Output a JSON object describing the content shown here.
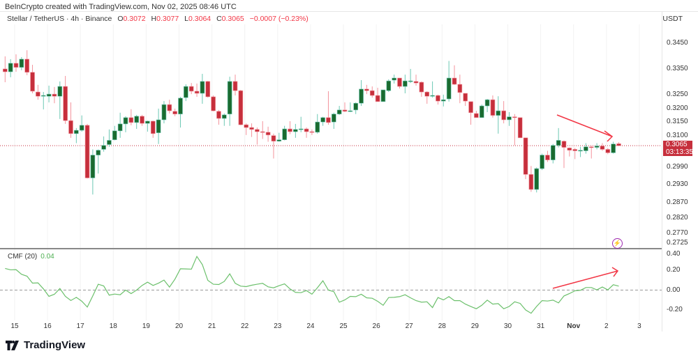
{
  "header": {
    "credit": "BeInCrypto created with TradingView.com, Nov 02, 2025 08:46 UTC",
    "symbol": "Stellar / TetherUS · 4h · Binance",
    "o_label": "O",
    "o": "0.3072",
    "h_label": "H",
    "h": "0.3077",
    "l_label": "L",
    "l": "0.3064",
    "c_label": "C",
    "c": "0.3065",
    "change": "−0.0007 (−0.23%)",
    "currency": "USDT"
  },
  "price_axis": {
    "scale": "log",
    "ticks": [
      "0.3450",
      "0.3350",
      "0.3250",
      "0.3200",
      "0.3150",
      "0.3100",
      "0.2990",
      "0.2930",
      "0.2870",
      "0.2820",
      "0.2770",
      "0.2725"
    ],
    "current_price": "0.3065",
    "countdown": "03:13:35"
  },
  "cmf": {
    "label": "CMF (20)",
    "value": "0.04",
    "ticks": [
      "0.40",
      "0.20",
      "0.00",
      "-0.20"
    ],
    "values": [
      0.218,
      0.204,
      0.206,
      0.159,
      0.14,
      0.07,
      0.073,
      0.012,
      -0.063,
      -0.042,
      0.016,
      -0.063,
      -0.105,
      -0.073,
      -0.112,
      -0.171,
      -0.059,
      0.059,
      0.042,
      -0.051,
      -0.04,
      -0.047,
      0,
      -0.035,
      0,
      0.047,
      0.08,
      0.047,
      0.07,
      0.101,
      0.03,
      0.11,
      0.215,
      0.213,
      0.211,
      0.339,
      0.257,
      0.098,
      0.059,
      0.056,
      0.087,
      0.164,
      0.068,
      0.04,
      0.035,
      0.049,
      0.059,
      0.068,
      0.033,
      0.023,
      0.044,
      0.063,
      0.012,
      -0.023,
      -0.026,
      -0.005,
      -0.041,
      0.024,
      0.094,
      0,
      -0.016,
      -0.122,
      -0.099,
      -0.063,
      -0.066,
      -0.042,
      -0.078,
      -0.082,
      -0.113,
      -0.153,
      -0.075,
      -0.073,
      -0.066,
      -0.047,
      -0.078,
      -0.106,
      -0.122,
      -0.118,
      -0.176,
      -0.075,
      -0.099,
      -0.066,
      -0.106,
      -0.106,
      -0.141,
      -0.165,
      -0.188,
      -0.153,
      -0.101,
      -0.141,
      -0.136,
      -0.188,
      -0.165,
      -0.118,
      -0.134,
      -0.2,
      -0.233,
      -0.165,
      -0.106,
      -0.11,
      -0.101,
      -0.129,
      -0.059,
      -0.035,
      -0.007,
      -0.002,
      0.026,
      0.026,
      0.002,
      0.031,
      0.002,
      0.054,
      0.04
    ]
  },
  "time_axis": {
    "labels": [
      "15",
      "16",
      "17",
      "18",
      "19",
      "20",
      "21",
      "22",
      "23",
      "24",
      "25",
      "26",
      "27",
      "28",
      "29",
      "30",
      "31",
      "Nov",
      "2",
      "3"
    ]
  },
  "colors": {
    "up": "#1a6b30",
    "up_wick": "#6cc8b4",
    "down": "#c62f3c",
    "down_wick": "#f4939c",
    "cmf_line": "#6cc06c",
    "annotation": "#f23645",
    "alert": "#9c27b0"
  },
  "footer": {
    "brand": "TradingView"
  },
  "chart_data": {
    "type": "candlestick",
    "interval": "4h",
    "series_name": "Stellar / TetherUS",
    "ohlc": [
      [
        0.3349,
        0.3398,
        0.3298,
        0.3338
      ],
      [
        0.3338,
        0.3387,
        0.3317,
        0.3371
      ],
      [
        0.3371,
        0.3406,
        0.3338,
        0.3355
      ],
      [
        0.3355,
        0.3395,
        0.3344,
        0.3387
      ],
      [
        0.3387,
        0.3422,
        0.3325,
        0.3336
      ],
      [
        0.3336,
        0.3365,
        0.3256,
        0.3264
      ],
      [
        0.3261,
        0.3288,
        0.3232,
        0.3245
      ],
      [
        0.3246,
        0.3261,
        0.3196,
        0.3248
      ],
      [
        0.3245,
        0.3285,
        0.3222,
        0.3253
      ],
      [
        0.3253,
        0.328,
        0.3219,
        0.3245
      ],
      [
        0.3245,
        0.3301,
        0.3161,
        0.3282
      ],
      [
        0.3282,
        0.3322,
        0.3143,
        0.3155
      ],
      [
        0.3155,
        0.3222,
        0.3093,
        0.3108
      ],
      [
        0.3108,
        0.3128,
        0.3074,
        0.312
      ],
      [
        0.312,
        0.3174,
        0.3115,
        0.3138
      ],
      [
        0.3138,
        0.3143,
        0.2951,
        0.2953
      ],
      [
        0.2953,
        0.3052,
        0.2897,
        0.3032
      ],
      [
        0.3032,
        0.3052,
        0.2968,
        0.3049
      ],
      [
        0.3052,
        0.3098,
        0.3044,
        0.3066
      ],
      [
        0.3069,
        0.3123,
        0.3061,
        0.3084
      ],
      [
        0.3086,
        0.3136,
        0.3084,
        0.3118
      ],
      [
        0.3118,
        0.3184,
        0.3093,
        0.3143
      ],
      [
        0.3143,
        0.3171,
        0.3113,
        0.3166
      ],
      [
        0.3166,
        0.3197,
        0.3138,
        0.3148
      ],
      [
        0.3148,
        0.3176,
        0.3125,
        0.3171
      ],
      [
        0.3171,
        0.3176,
        0.3136,
        0.3145
      ],
      [
        0.3145,
        0.3155,
        0.3115,
        0.3153
      ],
      [
        0.3153,
        0.3155,
        0.3093,
        0.3108
      ],
      [
        0.3111,
        0.3199,
        0.3071,
        0.3158
      ],
      [
        0.3158,
        0.3227,
        0.3145,
        0.3214
      ],
      [
        0.3214,
        0.3232,
        0.3181,
        0.3191
      ],
      [
        0.3189,
        0.3199,
        0.3171,
        0.3179
      ],
      [
        0.3179,
        0.3243,
        0.313,
        0.3238
      ],
      [
        0.324,
        0.329,
        0.3227,
        0.3282
      ],
      [
        0.3282,
        0.3295,
        0.3253,
        0.3264
      ],
      [
        0.3264,
        0.3293,
        0.3243,
        0.3256
      ],
      [
        0.3256,
        0.333,
        0.3217,
        0.3301
      ],
      [
        0.3301,
        0.3303,
        0.324,
        0.3243
      ],
      [
        0.3243,
        0.3248,
        0.3189,
        0.3191
      ],
      [
        0.3189,
        0.3194,
        0.314,
        0.3163
      ],
      [
        0.3163,
        0.3181,
        0.3136,
        0.3176
      ],
      [
        0.3179,
        0.3319,
        0.3136,
        0.3301
      ],
      [
        0.3301,
        0.3327,
        0.3248,
        0.3266
      ],
      [
        0.3266,
        0.3269,
        0.3138,
        0.314
      ],
      [
        0.314,
        0.3145,
        0.3103,
        0.313
      ],
      [
        0.313,
        0.3145,
        0.3096,
        0.3123
      ],
      [
        0.3123,
        0.313,
        0.3069,
        0.3115
      ],
      [
        0.3115,
        0.3153,
        0.3089,
        0.3113
      ],
      [
        0.3113,
        0.3133,
        0.3079,
        0.3103
      ],
      [
        0.3101,
        0.3108,
        0.302,
        0.3081
      ],
      [
        0.3081,
        0.3111,
        0.3079,
        0.3086
      ],
      [
        0.3086,
        0.3136,
        0.3084,
        0.3125
      ],
      [
        0.3125,
        0.3153,
        0.3106,
        0.3115
      ],
      [
        0.3115,
        0.3143,
        0.3093,
        0.3123
      ],
      [
        0.3123,
        0.3169,
        0.3113,
        0.3125
      ],
      [
        0.3125,
        0.313,
        0.3093,
        0.3115
      ],
      [
        0.3115,
        0.3123,
        0.3103,
        0.3113
      ],
      [
        0.3113,
        0.3179,
        0.3108,
        0.315
      ],
      [
        0.315,
        0.3169,
        0.3136,
        0.3166
      ],
      [
        0.3166,
        0.3264,
        0.314,
        0.3148
      ],
      [
        0.315,
        0.3184,
        0.3125,
        0.3179
      ],
      [
        0.3179,
        0.3209,
        0.3176,
        0.3194
      ],
      [
        0.3194,
        0.3222,
        0.3186,
        0.3189
      ],
      [
        0.3189,
        0.3222,
        0.3186,
        0.3191
      ],
      [
        0.3194,
        0.3222,
        0.3179,
        0.3219
      ],
      [
        0.3219,
        0.3306,
        0.3209,
        0.3272
      ],
      [
        0.3272,
        0.3288,
        0.3253,
        0.3266
      ],
      [
        0.3266,
        0.3282,
        0.324,
        0.3248
      ],
      [
        0.3248,
        0.3277,
        0.3225,
        0.3225
      ],
      [
        0.3225,
        0.3269,
        0.3225,
        0.3269
      ],
      [
        0.3266,
        0.3309,
        0.3261,
        0.3303
      ],
      [
        0.3306,
        0.3327,
        0.3293,
        0.3314
      ],
      [
        0.3314,
        0.3314,
        0.3274,
        0.3282
      ],
      [
        0.3282,
        0.3327,
        0.3256,
        0.3303
      ],
      [
        0.3301,
        0.3349,
        0.3295,
        0.3303
      ],
      [
        0.3301,
        0.3327,
        0.3285,
        0.3295
      ],
      [
        0.3298,
        0.3301,
        0.3243,
        0.3261
      ],
      [
        0.3261,
        0.3264,
        0.3217,
        0.3245
      ],
      [
        0.3245,
        0.3301,
        0.324,
        0.3248
      ],
      [
        0.3248,
        0.3251,
        0.3214,
        0.3227
      ],
      [
        0.3227,
        0.3251,
        0.3207,
        0.3232
      ],
      [
        0.3235,
        0.338,
        0.3225,
        0.3314
      ],
      [
        0.3314,
        0.3363,
        0.3288,
        0.329
      ],
      [
        0.329,
        0.3327,
        0.3219,
        0.3259
      ],
      [
        0.3256,
        0.3256,
        0.3209,
        0.3227
      ],
      [
        0.3225,
        0.3225,
        0.314,
        0.3184
      ],
      [
        0.3181,
        0.3191,
        0.3166,
        0.3166
      ],
      [
        0.3166,
        0.3214,
        0.3166,
        0.3209
      ],
      [
        0.3209,
        0.3235,
        0.3186,
        0.3232
      ],
      [
        0.3232,
        0.3248,
        0.3166,
        0.3174
      ],
      [
        0.3174,
        0.3245,
        0.3108,
        0.3191
      ],
      [
        0.3191,
        0.3227,
        0.3145,
        0.3158
      ],
      [
        0.3158,
        0.3186,
        0.3136,
        0.3169
      ],
      [
        0.3169,
        0.3179,
        0.3066,
        0.3166
      ],
      [
        0.3166,
        0.3166,
        0.3093,
        0.3093
      ],
      [
        0.3093,
        0.3093,
        0.2949,
        0.2965
      ],
      [
        0.2965,
        0.2994,
        0.2906,
        0.2914
      ],
      [
        0.2914,
        0.2989,
        0.2904,
        0.2985
      ],
      [
        0.2985,
        0.3037,
        0.298,
        0.3032
      ],
      [
        0.3032,
        0.3047,
        0.3008,
        0.3015
      ],
      [
        0.3015,
        0.3071,
        0.3003,
        0.3066
      ],
      [
        0.3066,
        0.3128,
        0.3059,
        0.3084
      ],
      [
        0.3081,
        0.3084,
        0.2987,
        0.3059
      ],
      [
        0.3057,
        0.3059,
        0.3027,
        0.3049
      ],
      [
        0.3052,
        0.3057,
        0.3018,
        0.3047
      ],
      [
        0.3047,
        0.3061,
        0.3025,
        0.3049
      ],
      [
        0.3047,
        0.3074,
        0.3037,
        0.3061
      ],
      [
        0.3061,
        0.3064,
        0.302,
        0.3059
      ],
      [
        0.3059,
        0.3074,
        0.3052,
        0.3064
      ],
      [
        0.3064,
        0.3074,
        0.3047,
        0.3052
      ],
      [
        0.3052,
        0.3057,
        0.3035,
        0.304
      ],
      [
        0.304,
        0.3079,
        0.3037,
        0.3071
      ],
      [
        0.3072,
        0.3077,
        0.3064,
        0.3065
      ]
    ]
  }
}
